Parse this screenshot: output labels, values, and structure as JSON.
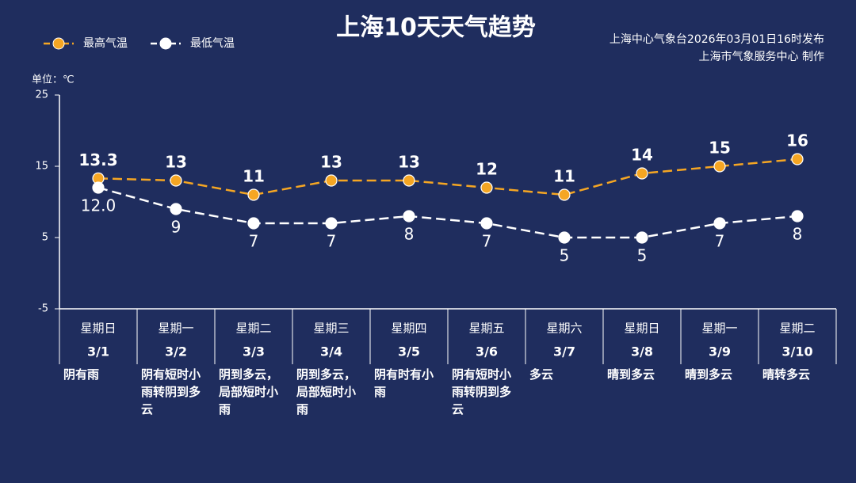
{
  "chart_data": {
    "type": "line",
    "title": "上海10天天气趋势",
    "source": [
      "上海中心气象台2026年03月01日16时发布",
      "上海市气象服务中心 制作"
    ],
    "unit_label": "单位：℃",
    "categories": [
      "3/1",
      "3/2",
      "3/3",
      "3/4",
      "3/5",
      "3/6",
      "3/7",
      "3/8",
      "3/9",
      "3/10"
    ],
    "weekdays": [
      "星期日",
      "星期一",
      "星期二",
      "星期三",
      "星期四",
      "星期五",
      "星期六",
      "星期日",
      "星期一",
      "星期二"
    ],
    "weekday_colors": [
      "#f5a623",
      "#ffffff",
      "#ffffff",
      "#ffffff",
      "#ffffff",
      "#ffffff",
      "#f5a623",
      "#f5a623",
      "#ffffff",
      "#ffffff"
    ],
    "weather": [
      "阴有雨",
      "阴有短时小雨转阴到多云",
      "阴到多云，局部短时小雨",
      "阴到多云，局部短时小雨",
      "阴有时有小雨",
      "阴有短时小雨转阴到多云",
      "多云",
      "晴到多云",
      "晴到多云",
      "晴转多云"
    ],
    "series": [
      {
        "name": "最高气温",
        "color": "#f5a623",
        "values": [
          13.3,
          13,
          11,
          13,
          13,
          12,
          11,
          14,
          15,
          16
        ]
      },
      {
        "name": "最低气温",
        "color": "#ffffff",
        "values": [
          12,
          9,
          7,
          7,
          8,
          7,
          5,
          5,
          7,
          8
        ],
        "value_labels": [
          "12.0",
          "9",
          "7",
          "7",
          "8",
          "7",
          "5",
          "5",
          "7",
          "8"
        ]
      }
    ],
    "ylim": [
      -5,
      25
    ],
    "yticks": [
      -5,
      5,
      15,
      25
    ],
    "grid": false
  }
}
